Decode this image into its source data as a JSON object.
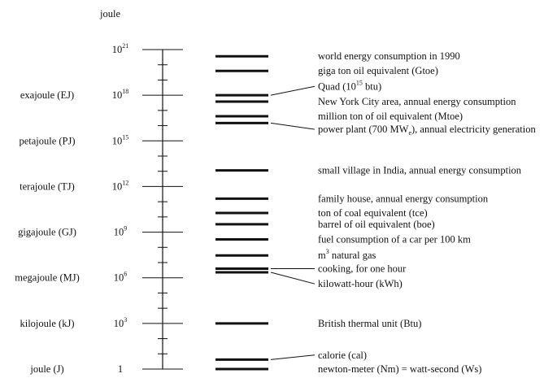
{
  "axis": {
    "unit_label": "joule",
    "min_exponent": 0,
    "max_exponent": 21,
    "major_ticks": [
      {
        "exponent": 21,
        "base": "10",
        "power": "21",
        "unit_name": ""
      },
      {
        "exponent": 18,
        "base": "10",
        "power": "18",
        "unit_name": "exajoule (EJ)"
      },
      {
        "exponent": 15,
        "base": "10",
        "power": "15",
        "unit_name": "petajoule (PJ)"
      },
      {
        "exponent": 12,
        "base": "10",
        "power": "12",
        "unit_name": "terajoule (TJ)"
      },
      {
        "exponent": 9,
        "base": "10",
        "power": "9",
        "unit_name": "gigajoule (GJ)"
      },
      {
        "exponent": 6,
        "base": "10",
        "power": "6",
        "unit_name": "megajoule (MJ)"
      },
      {
        "exponent": 3,
        "base": "10",
        "power": "3",
        "unit_name": "kilojoule (kJ)"
      },
      {
        "exponent": 0,
        "base": "1",
        "power": "",
        "unit_name": "joule (J)"
      }
    ]
  },
  "entries": [
    {
      "exponent": 20.56,
      "label_exponent": 20.56,
      "pre": "world energy consumption in 1990",
      "sup": "",
      "post": "",
      "sub": "",
      "tail": "",
      "leader": false
    },
    {
      "exponent": 19.6,
      "label_exponent": 19.6,
      "pre": "giga ton oil equivalent (Gtoe)",
      "sup": "",
      "post": "",
      "sub": "",
      "tail": "",
      "leader": false
    },
    {
      "exponent": 18.0,
      "label_exponent": 18.58,
      "pre": "Quad (10",
      "sup": "15",
      "post": " btu)",
      "sub": "",
      "tail": "",
      "leader": true
    },
    {
      "exponent": 17.58,
      "label_exponent": 17.58,
      "pre": "New York City area, annual energy consumption",
      "sup": "",
      "post": "",
      "sub": "",
      "tail": "",
      "leader": false
    },
    {
      "exponent": 16.62,
      "label_exponent": 16.62,
      "pre": "million ton of oil equivalent (Mtoe)",
      "sup": "",
      "post": "",
      "sub": "",
      "tail": "",
      "leader": false
    },
    {
      "exponent": 16.17,
      "label_exponent": 15.76,
      "pre": "power plant (700 MW",
      "sup": "",
      "post": "",
      "sub": "e",
      "tail": "), annual electricity generation",
      "leader": true
    },
    {
      "exponent": 13.06,
      "label_exponent": 13.06,
      "pre": "small village in India, annual energy consumption",
      "sup": "",
      "post": "",
      "sub": "",
      "tail": "",
      "leader": false
    },
    {
      "exponent": 11.2,
      "label_exponent": 11.2,
      "pre": "family house, annual energy consumption",
      "sup": "",
      "post": "",
      "sub": "",
      "tail": "",
      "leader": false
    },
    {
      "exponent": 10.26,
      "label_exponent": 10.26,
      "pre": "ton of coal equivalent (tce)",
      "sup": "",
      "post": "",
      "sub": "",
      "tail": "",
      "leader": false
    },
    {
      "exponent": 9.52,
      "label_exponent": 9.52,
      "pre": "barrel of oil equivalent (boe)",
      "sup": "",
      "post": "",
      "sub": "",
      "tail": "",
      "leader": false
    },
    {
      "exponent": 8.52,
      "label_exponent": 8.52,
      "pre": "fuel consumption of a car per 100 km",
      "sup": "",
      "post": "",
      "sub": "",
      "tail": "",
      "leader": false
    },
    {
      "exponent": 7.47,
      "label_exponent": 7.47,
      "pre": "m",
      "sup": "3",
      "post": " natural gas",
      "sub": "",
      "tail": "",
      "leader": false
    },
    {
      "exponent": 6.6,
      "label_exponent": 6.6,
      "pre": "cooking, for one hour",
      "sup": "",
      "post": "",
      "sub": "",
      "tail": "",
      "leader": true
    },
    {
      "exponent": 6.36,
      "label_exponent": 5.6,
      "pre": "kilowatt-hour (kWh)",
      "sup": "",
      "post": "",
      "sub": "",
      "tail": "",
      "leader": true
    },
    {
      "exponent": 3.0,
      "label_exponent": 3.0,
      "pre": "British thermal unit (Btu)",
      "sup": "",
      "post": "",
      "sub": "",
      "tail": "",
      "leader": false
    },
    {
      "exponent": 0.62,
      "label_exponent": 0.92,
      "pre": "calorie (cal)",
      "sup": "",
      "post": "",
      "sub": "",
      "tail": "",
      "leader": true
    },
    {
      "exponent": 0.0,
      "label_exponent": 0.0,
      "pre": "newton-meter (Nm) = watt-second (Ws)",
      "sup": "",
      "post": "",
      "sub": "",
      "tail": "",
      "leader": false
    }
  ]
}
